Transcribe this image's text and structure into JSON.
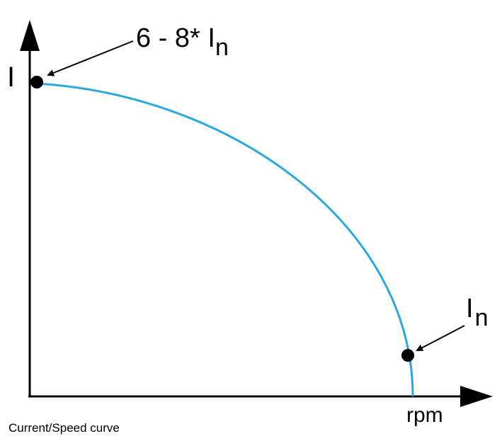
{
  "axes": {
    "y_label": "I",
    "x_label": "rpm"
  },
  "annotations": [
    {
      "text": "6 - 8* I",
      "subscript": "n"
    },
    {
      "text": "I",
      "subscript": "n"
    }
  ],
  "caption": "Current/Speed curve"
}
